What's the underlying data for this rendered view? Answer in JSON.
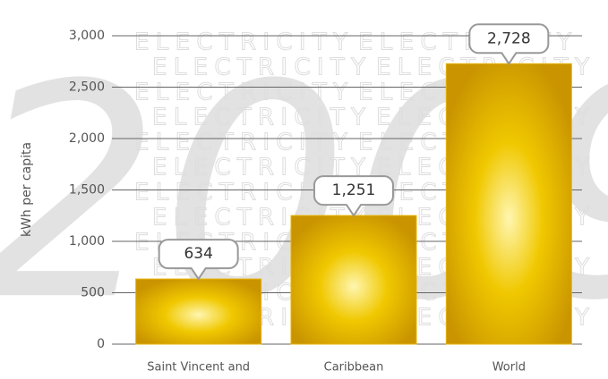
{
  "chart_data": {
    "type": "bar",
    "y_axis_label": "kWh per capita",
    "watermark_text": "ELECTRICITY",
    "watermark_year": "2009",
    "categories": [
      "Saint Vincent and",
      "Caribbean",
      "World"
    ],
    "values": [
      634,
      1251,
      2728
    ],
    "value_labels": [
      "634",
      "1,251",
      "2,728"
    ],
    "color": "#e8b400",
    "ylim": [
      0,
      3000
    ],
    "yticks": [
      0,
      500,
      {
        "value": 1000,
        "label": "1,000"
      },
      {
        "value": 1500,
        "label": "1,500"
      },
      {
        "value": 2000,
        "label": "2,000"
      },
      {
        "value": 2500,
        "label": "2,500"
      },
      {
        "value": 3000,
        "label": "3,000"
      }
    ],
    "grid": true
  }
}
